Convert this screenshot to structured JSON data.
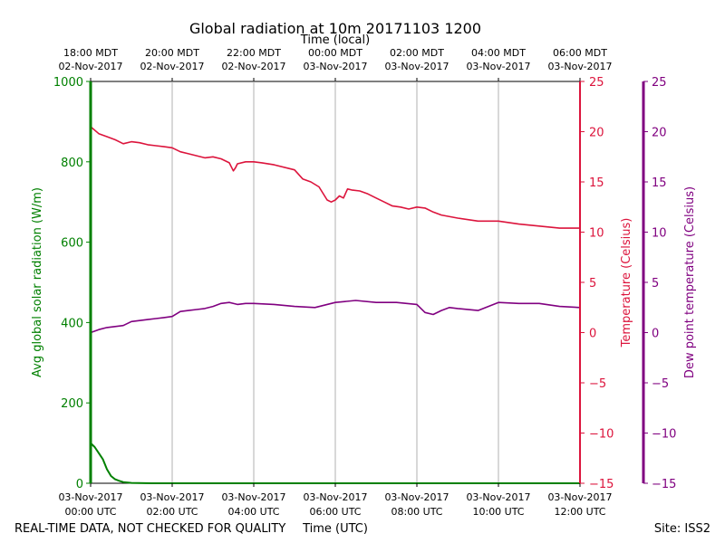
{
  "chart_data": {
    "type": "line",
    "title": "Global radiation at 10m 20171103 1200",
    "top_axis_label": "Time (local)",
    "xlabel": "Time (UTC)",
    "footer_left": "REAL-TIME DATA, NOT CHECKED FOR QUALITY",
    "footer_right": "Site: ISS2",
    "x_range_hours": [
      0,
      12
    ],
    "bottom_ticks": [
      {
        "hour": 0,
        "line1": "03-Nov-2017",
        "line2": "00:00 UTC"
      },
      {
        "hour": 2,
        "line1": "03-Nov-2017",
        "line2": "02:00 UTC"
      },
      {
        "hour": 4,
        "line1": "03-Nov-2017",
        "line2": "04:00 UTC"
      },
      {
        "hour": 6,
        "line1": "03-Nov-2017",
        "line2": "06:00 UTC"
      },
      {
        "hour": 8,
        "line1": "03-Nov-2017",
        "line2": "08:00 UTC"
      },
      {
        "hour": 10,
        "line1": "03-Nov-2017",
        "line2": "10:00 UTC"
      },
      {
        "hour": 12,
        "line1": "03-Nov-2017",
        "line2": "12:00 UTC"
      }
    ],
    "top_ticks": [
      {
        "hour": 0,
        "line1": "18:00 MDT",
        "line2": "02-Nov-2017"
      },
      {
        "hour": 2,
        "line1": "20:00 MDT",
        "line2": "02-Nov-2017"
      },
      {
        "hour": 4,
        "line1": "22:00 MDT",
        "line2": "02-Nov-2017"
      },
      {
        "hour": 6,
        "line1": "00:00 MDT",
        "line2": "03-Nov-2017"
      },
      {
        "hour": 8,
        "line1": "02:00 MDT",
        "line2": "03-Nov-2017"
      },
      {
        "hour": 10,
        "line1": "04:00 MDT",
        "line2": "03-Nov-2017"
      },
      {
        "hour": 12,
        "line1": "06:00 MDT",
        "line2": "03-Nov-2017"
      }
    ],
    "axes": {
      "radiation": {
        "label": "Avg global solar radiation (W/m)",
        "range": [
          0,
          1000
        ],
        "ticks": [
          "0",
          "200",
          "400",
          "600",
          "800",
          "1000"
        ],
        "color": "#008000"
      },
      "temperature": {
        "label": "Temperature (Celsius)",
        "range": [
          -15,
          25
        ],
        "ticks": [
          "−15",
          "−10",
          "−5",
          "0",
          "5",
          "10",
          "15",
          "20",
          "25"
        ],
        "color": "#dc143c"
      },
      "dewpoint": {
        "label": "Dew point temperature (Celsius)",
        "range": [
          -15,
          25
        ],
        "ticks": [
          "−15",
          "−10",
          "−5",
          "0",
          "5",
          "10",
          "15",
          "20",
          "25"
        ],
        "color": "#800080"
      }
    },
    "series": [
      {
        "name": "Avg global solar radiation",
        "axis": "radiation",
        "color": "#008000",
        "x": [
          0,
          0.1,
          0.2,
          0.3,
          0.4,
          0.5,
          0.6,
          0.7,
          0.8,
          1.0,
          1.5,
          2,
          4,
          6,
          8,
          10,
          12
        ],
        "y": [
          100,
          90,
          75,
          60,
          35,
          18,
          10,
          6,
          3,
          1,
          0,
          0,
          0,
          0,
          0,
          0,
          0
        ]
      },
      {
        "name": "Temperature",
        "axis": "temperature",
        "color": "#dc143c",
        "x": [
          0,
          0.2,
          0.4,
          0.6,
          0.8,
          1.0,
          1.2,
          1.4,
          1.6,
          1.8,
          2.0,
          2.2,
          2.4,
          2.6,
          2.8,
          3.0,
          3.2,
          3.4,
          3.5,
          3.55,
          3.6,
          3.8,
          4.0,
          4.2,
          4.5,
          5.0,
          5.2,
          5.4,
          5.6,
          5.8,
          5.9,
          6.0,
          6.1,
          6.2,
          6.3,
          6.4,
          6.6,
          6.8,
          7.0,
          7.2,
          7.4,
          7.6,
          7.8,
          8.0,
          8.2,
          8.4,
          8.6,
          9.0,
          9.5,
          10.0,
          10.5,
          11.0,
          11.5,
          12.0
        ],
        "y": [
          20.5,
          19.8,
          19.5,
          19.2,
          18.8,
          19.0,
          18.9,
          18.7,
          18.6,
          18.5,
          18.4,
          18.0,
          17.8,
          17.6,
          17.4,
          17.5,
          17.3,
          16.9,
          16.1,
          16.4,
          16.8,
          17.0,
          17.0,
          16.9,
          16.7,
          16.2,
          15.3,
          15.0,
          14.5,
          13.2,
          13.0,
          13.2,
          13.6,
          13.4,
          14.3,
          14.2,
          14.1,
          13.8,
          13.4,
          13.0,
          12.6,
          12.5,
          12.3,
          12.5,
          12.4,
          12.0,
          11.7,
          11.4,
          11.1,
          11.1,
          10.8,
          10.6,
          10.4,
          10.4
        ]
      },
      {
        "name": "Dew point temperature",
        "axis": "dewpoint",
        "color": "#800080",
        "x": [
          0,
          0.2,
          0.4,
          0.6,
          0.8,
          1.0,
          1.2,
          1.4,
          1.6,
          1.8,
          2.0,
          2.2,
          2.4,
          2.6,
          2.8,
          3.0,
          3.2,
          3.4,
          3.6,
          3.8,
          4.0,
          4.5,
          5.0,
          5.5,
          6.0,
          6.5,
          7.0,
          7.5,
          8.0,
          8.2,
          8.4,
          8.6,
          8.8,
          9.0,
          9.5,
          10.0,
          10.5,
          11.0,
          11.5,
          12.0
        ],
        "y": [
          0.0,
          0.3,
          0.5,
          0.6,
          0.7,
          1.1,
          1.2,
          1.3,
          1.4,
          1.5,
          1.6,
          2.1,
          2.2,
          2.3,
          2.4,
          2.6,
          2.9,
          3.0,
          2.8,
          2.9,
          2.9,
          2.8,
          2.6,
          2.5,
          3.0,
          3.2,
          3.0,
          3.0,
          2.8,
          2.0,
          1.8,
          2.2,
          2.5,
          2.4,
          2.2,
          3.0,
          2.9,
          2.9,
          2.6,
          2.5
        ]
      }
    ]
  }
}
